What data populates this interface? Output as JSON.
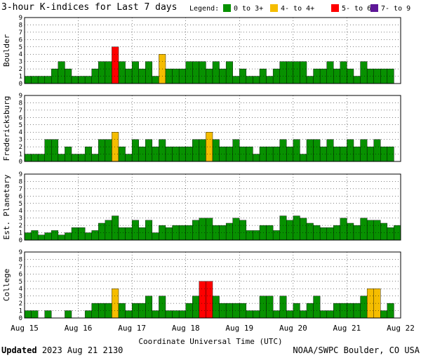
{
  "chart_data": {
    "type": "bar",
    "title": "3-hour K-indices for Last 7 days",
    "legend": {
      "label": "Legend:",
      "placement": "top-right",
      "entries": [
        {
          "label": "0 to 3+",
          "color": "#079100"
        },
        {
          "label": "4- to 4+",
          "color": "#f5bd00"
        },
        {
          "label": "5- to 6+",
          "color": "#ff0000"
        },
        {
          "label": "7- to 9",
          "color": "#5e1797"
        }
      ]
    },
    "xlabel": "Coordinate Universal Time (UTC)",
    "x_ticks": [
      "Aug 15",
      "Aug 16",
      "Aug 17",
      "Aug 18",
      "Aug 19",
      "Aug 20",
      "Aug 21",
      "Aug 22"
    ],
    "ylim": [
      0,
      9
    ],
    "y_ticks": [
      "0",
      "1",
      "2",
      "3",
      "4",
      "5",
      "6",
      "7",
      "8",
      "9"
    ],
    "bars_per_day": 8,
    "grid": true,
    "panels": [
      {
        "name": "Boulder",
        "values": [
          1,
          1,
          1,
          1,
          2,
          3,
          2,
          1,
          1,
          1,
          2,
          3,
          3,
          5,
          3,
          2,
          3,
          2,
          3,
          1,
          4,
          2,
          2,
          2,
          3,
          3,
          3,
          2,
          3,
          2,
          3,
          1,
          2,
          1,
          1,
          2,
          1,
          2,
          3,
          3,
          3,
          3,
          1,
          2,
          2,
          3,
          2,
          3,
          2,
          1,
          3,
          2,
          2,
          2,
          2,
          0
        ]
      },
      {
        "name": "Fredericksburg",
        "values": [
          1,
          1,
          1,
          3,
          3,
          1,
          2,
          1,
          1,
          2,
          1,
          3,
          3,
          4,
          2,
          1,
          3,
          2,
          3,
          2,
          3,
          2,
          2,
          2,
          2,
          3,
          3,
          4,
          3,
          2,
          2,
          3,
          2,
          2,
          1,
          2,
          2,
          2,
          3,
          2,
          3,
          1,
          3,
          3,
          2,
          3,
          2,
          2,
          3,
          2,
          3,
          2,
          3,
          2,
          2,
          0
        ]
      },
      {
        "name": "Est. Planetary",
        "values": [
          1,
          1.3,
          0.7,
          1,
          1.3,
          0.7,
          1,
          1.7,
          1.7,
          1,
          1.3,
          2.3,
          2.7,
          3.3,
          1.7,
          1.7,
          2.7,
          1.7,
          2.7,
          1,
          2,
          1.7,
          2,
          2,
          2,
          2.7,
          3,
          3,
          2,
          2,
          2.3,
          3,
          2.7,
          1.3,
          1.3,
          2,
          2,
          1.3,
          3.3,
          2.7,
          3.3,
          3,
          2.3,
          2,
          1.7,
          1.7,
          2,
          3,
          2.3,
          2,
          3,
          2.7,
          2.7,
          2.3,
          1.7,
          2
        ]
      },
      {
        "name": "College",
        "values": [
          1,
          1,
          0,
          1,
          0,
          0,
          1,
          0,
          0,
          1,
          2,
          2,
          2,
          4,
          2,
          1,
          2,
          2,
          3,
          1,
          3,
          1,
          1,
          1,
          2,
          3,
          5,
          5,
          3,
          2,
          2,
          2,
          2,
          1,
          1,
          3,
          3,
          1,
          3,
          1,
          2,
          1,
          2,
          3,
          1,
          1,
          2,
          2,
          2,
          2,
          3,
          4,
          4,
          1,
          2,
          0
        ]
      }
    ]
  },
  "footer": {
    "updated_label": "Updated",
    "updated_value": "2023 Aug 21 2130",
    "source": "NOAA/SWPC Boulder, CO USA"
  }
}
